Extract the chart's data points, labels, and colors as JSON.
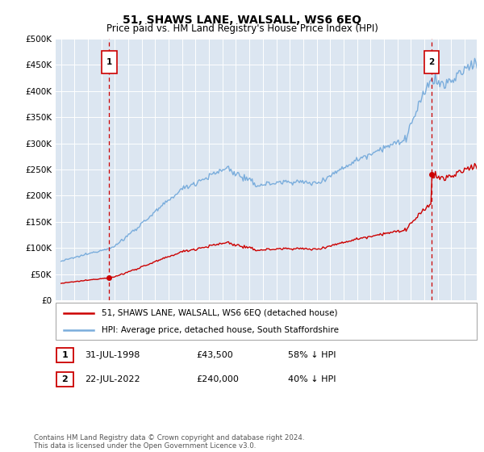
{
  "title": "51, SHAWS LANE, WALSALL, WS6 6EQ",
  "subtitle": "Price paid vs. HM Land Registry's House Price Index (HPI)",
  "legend_line1": "51, SHAWS LANE, WALSALL, WS6 6EQ (detached house)",
  "legend_line2": "HPI: Average price, detached house, South Staffordshire",
  "footnote": "Contains HM Land Registry data © Crown copyright and database right 2024.\nThis data is licensed under the Open Government Licence v3.0.",
  "transaction1_date": "31-JUL-1998",
  "transaction1_price": "£43,500",
  "transaction1_hpi": "58% ↓ HPI",
  "transaction2_date": "22-JUL-2022",
  "transaction2_price": "£240,000",
  "transaction2_hpi": "40% ↓ HPI",
  "bg_color": "#dce6f1",
  "hpi_color": "#7aaddc",
  "price_color": "#cc0000",
  "vline_color": "#cc0000",
  "ylim": [
    0,
    500000
  ],
  "yticks": [
    0,
    50000,
    100000,
    150000,
    200000,
    250000,
    300000,
    350000,
    400000,
    450000,
    500000
  ],
  "t1": 1998.58,
  "t2": 2022.55,
  "price1": 43500,
  "price2": 240000,
  "xmin": 1994.6,
  "xmax": 2025.9
}
